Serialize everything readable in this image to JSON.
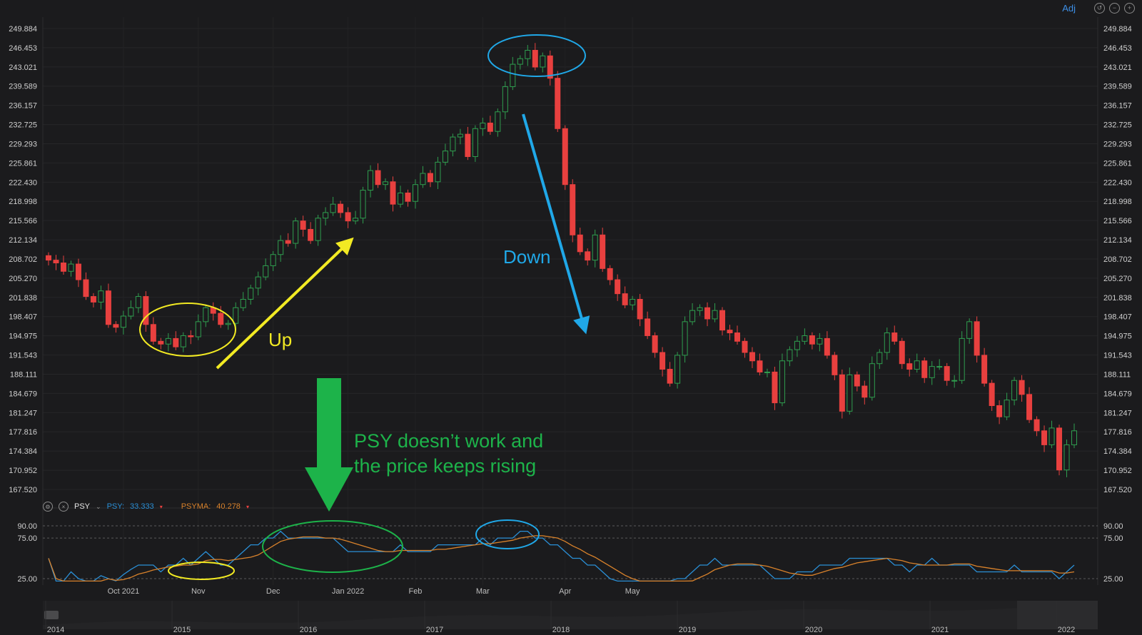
{
  "toolbar": {
    "adj_label": "Adj",
    "icons": [
      "undo-icon",
      "zoom-out-icon",
      "zoom-in-icon"
    ]
  },
  "psy_legend": {
    "indicator": "PSY",
    "psy_label": "PSY:",
    "psy_value": "33.333",
    "psyma_label": "PSYMA:",
    "psyma_value": "40.278",
    "down_marker": "▾"
  },
  "annotations": {
    "up": "Up",
    "down": "Down",
    "psy_note_line1": "PSY doesn’t work and",
    "psy_note_line2": "the price keeps rising"
  },
  "colors": {
    "up_candle": "#2f9e4f",
    "down_candle": "#e8403f",
    "psy_line": "#2a8fd6",
    "psyma_line": "#d9822b",
    "yellow": "#f2ea23",
    "blue": "#20a8e8",
    "green": "#1db34a"
  },
  "navigator": {
    "years": [
      "2014",
      "2015",
      "2016",
      "2017",
      "2018",
      "2019",
      "2020",
      "2021",
      "2022"
    ]
  },
  "chart_data": [
    {
      "type": "candlestick",
      "y_ticks": [
        "249.884",
        "246.453",
        "243.021",
        "239.589",
        "236.157",
        "232.725",
        "229.293",
        "225.861",
        "222.430",
        "218.998",
        "215.566",
        "212.134",
        "208.702",
        "205.270",
        "201.838",
        "198.407",
        "194.975",
        "191.543",
        "188.111",
        "184.679",
        "181.247",
        "177.816",
        "174.384",
        "170.952",
        "167.520"
      ],
      "ylim": [
        167.52,
        249.884
      ],
      "x_tick_labels": [
        "Oct 2021",
        "Nov",
        "Dec",
        "Jan 2022",
        "Feb",
        "Mar",
        "Apr",
        "May"
      ],
      "x_tick_index": [
        10,
        20,
        30,
        40,
        49,
        58,
        69,
        78
      ],
      "close": [
        208.5,
        208.0,
        206.5,
        207.8,
        205.0,
        202.0,
        201.0,
        203.0,
        197.0,
        196.5,
        198.5,
        200.0,
        202.0,
        197.0,
        194.0,
        193.5,
        194.5,
        193.0,
        195.0,
        194.8,
        197.5,
        200.0,
        199.0,
        197.0,
        197.2,
        200.0,
        201.5,
        203.5,
        205.5,
        207.5,
        209.5,
        212.0,
        211.5,
        215.5,
        214.0,
        212.0,
        216.0,
        217.0,
        218.5,
        217.0,
        215.5,
        216.0,
        221.0,
        224.5,
        222.0,
        222.5,
        218.5,
        220.5,
        219.0,
        222.0,
        224.0,
        222.5,
        226.0,
        228.0,
        230.5,
        231.0,
        227.0,
        232.0,
        233.0,
        231.5,
        235.0,
        239.5,
        243.5,
        244.5,
        246.0,
        243.0,
        245.0,
        241.0,
        232.0,
        222.0,
        213.0,
        210.0,
        208.5,
        213.0,
        207.0,
        205.0,
        202.5,
        200.5,
        201.5,
        198.0,
        195.0,
        192.0,
        189.0,
        186.5,
        191.5,
        197.5,
        199.5,
        200.0,
        198.0,
        199.5,
        196.0,
        195.5,
        194.0,
        192.0,
        190.5,
        188.5,
        188.5,
        183.0,
        190.5,
        192.5,
        194.0,
        195.0,
        193.5,
        194.5,
        191.5,
        188.0,
        181.5,
        188.0,
        186.0,
        184.0,
        190.0,
        192.0,
        195.5,
        194.0,
        190.0,
        189.0,
        190.5,
        187.5,
        189.5,
        189.5,
        187.0,
        187.0,
        194.5,
        197.5,
        191.5,
        186.5,
        182.5,
        180.5,
        183.5,
        187.0,
        184.5,
        180.0,
        178.0,
        175.5,
        178.5,
        171.0,
        175.5,
        178.0
      ],
      "psy_series": [
        {
          "name": "PSY",
          "value": 33.333
        },
        {
          "name": "PSYMA",
          "value": 40.278
        }
      ],
      "psy_y_ticks": [
        "90.00",
        "75.00",
        "25.00"
      ],
      "psy_ylim": [
        25,
        90
      ]
    }
  ]
}
